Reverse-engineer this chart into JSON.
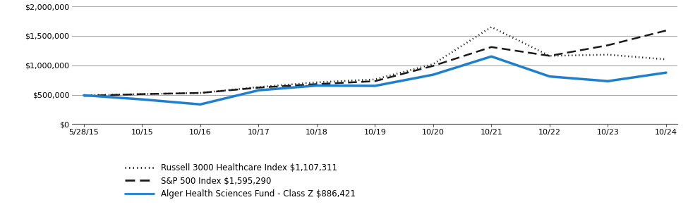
{
  "x_labels": [
    "5/28/15",
    "10/15",
    "10/16",
    "10/17",
    "10/18",
    "10/19",
    "10/20",
    "10/21",
    "10/22",
    "10/23",
    "10/24"
  ],
  "x_positions": [
    0,
    1,
    2,
    3,
    4,
    5,
    6,
    7,
    8,
    9,
    10
  ],
  "alger": [
    490000,
    420000,
    335000,
    575000,
    655000,
    650000,
    840000,
    1150000,
    810000,
    730000,
    875000
  ],
  "russell": [
    490000,
    510000,
    530000,
    630000,
    710000,
    760000,
    1020000,
    1650000,
    1160000,
    1180000,
    1100000
  ],
  "sp500": [
    480000,
    510000,
    530000,
    620000,
    680000,
    730000,
    990000,
    1310000,
    1160000,
    1340000,
    1590000
  ],
  "alger_label": "Alger Health Sciences Fund - Class Z $886,421",
  "russell_label": "Russell 3000 Healthcare Index $1,107,311",
  "sp500_label": "S&P 500 Index $1,595,290",
  "alger_color": "#1E7FCC",
  "russell_color": "#1a1a1a",
  "sp500_color": "#1a1a1a",
  "ylim": [
    0,
    2000000
  ],
  "yticks": [
    0,
    500000,
    1000000,
    1500000,
    2000000
  ],
  "ytick_labels": [
    "$0",
    "$500,000",
    "$1,000,000",
    "$1,500,000",
    "$2,000,000"
  ],
  "background_color": "#ffffff",
  "grid_color": "#aaaaaa",
  "legend_fontsize": 8.5,
  "tick_fontsize": 8.0
}
